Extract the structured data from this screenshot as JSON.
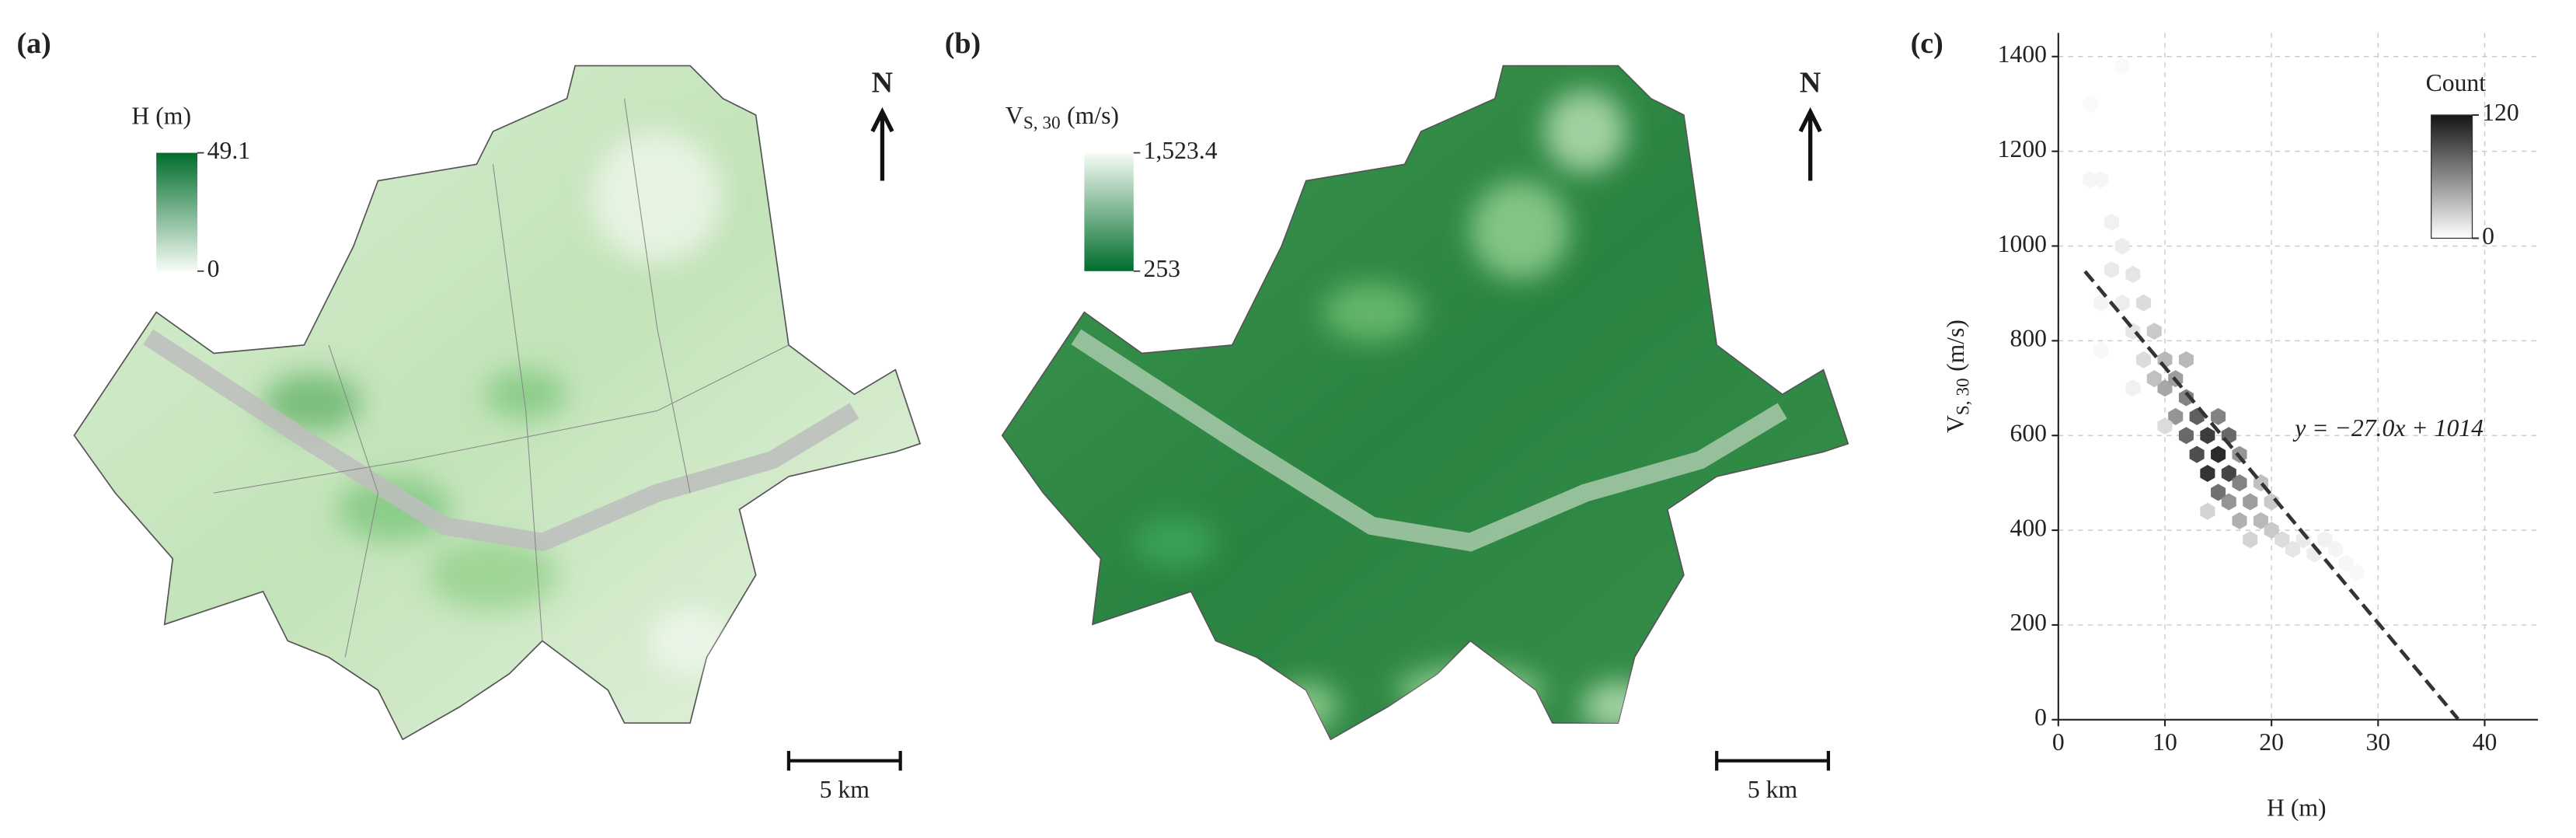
{
  "panel_a": {
    "label": "(a)",
    "legend_title": "H (m)",
    "colorbar_ticks": [
      49.1,
      0
    ],
    "north": "N",
    "scale_bar": "5 km"
  },
  "panel_b": {
    "label": "(b)",
    "legend_title": {
      "main": "V",
      "sub": "S, 30",
      "unit": "(m/s)"
    },
    "colorbar_ticks": [
      {
        "value": 1523.4,
        "label": "1,523.4"
      },
      253
    ],
    "north": "N",
    "scale_bar": "5 km"
  },
  "chart_data": {
    "type": "hexbin",
    "label": "(c)",
    "xlabel": "H (m)",
    "ylabel": {
      "main": "V",
      "sub": "S, 30",
      "unit": "(m/s)"
    },
    "xlim": [
      0,
      45
    ],
    "ylim": [
      0,
      1450
    ],
    "xticks": [
      0,
      10,
      20,
      30,
      40
    ],
    "yticks": [
      0,
      200,
      400,
      600,
      800,
      1000,
      1200,
      1400
    ],
    "grid": true,
    "x": [
      4,
      3,
      5,
      6,
      5,
      7,
      8,
      7,
      9,
      10,
      8,
      11,
      10,
      12,
      11,
      13,
      12,
      14,
      13,
      15,
      14,
      16,
      15,
      17,
      16,
      18,
      17,
      19,
      20,
      21,
      18,
      22,
      23,
      24,
      25,
      26,
      27,
      28,
      6,
      9,
      12,
      15,
      16,
      17,
      19,
      20,
      4,
      7,
      10,
      14,
      3,
      6,
      4
    ],
    "y": [
      1140,
      1140,
      1050,
      1000,
      950,
      940,
      880,
      820,
      820,
      760,
      760,
      720,
      700,
      680,
      640,
      640,
      600,
      600,
      560,
      560,
      520,
      520,
      480,
      500,
      460,
      460,
      420,
      420,
      400,
      380,
      380,
      360,
      380,
      350,
      380,
      360,
      330,
      310,
      880,
      720,
      760,
      640,
      600,
      560,
      500,
      460,
      880,
      700,
      620,
      440,
      1300,
      1380,
      780
    ],
    "counts": [
      5,
      5,
      8,
      10,
      12,
      15,
      20,
      15,
      30,
      40,
      20,
      55,
      50,
      70,
      60,
      90,
      85,
      110,
      100,
      120,
      115,
      105,
      80,
      70,
      60,
      55,
      45,
      40,
      30,
      20,
      25,
      15,
      12,
      10,
      8,
      6,
      5,
      4,
      10,
      35,
      40,
      70,
      85,
      60,
      35,
      30,
      6,
      8,
      20,
      25,
      3,
      3,
      4
    ],
    "regression": {
      "slope": -27.0,
      "intercept": 1014,
      "line_x": [
        2.5,
        37.5
      ],
      "annotation": "y = −27.0x + 1014"
    },
    "colorbar": {
      "title": "Count",
      "lim": [
        0,
        120
      ],
      "ticks": [
        0,
        120
      ]
    }
  }
}
